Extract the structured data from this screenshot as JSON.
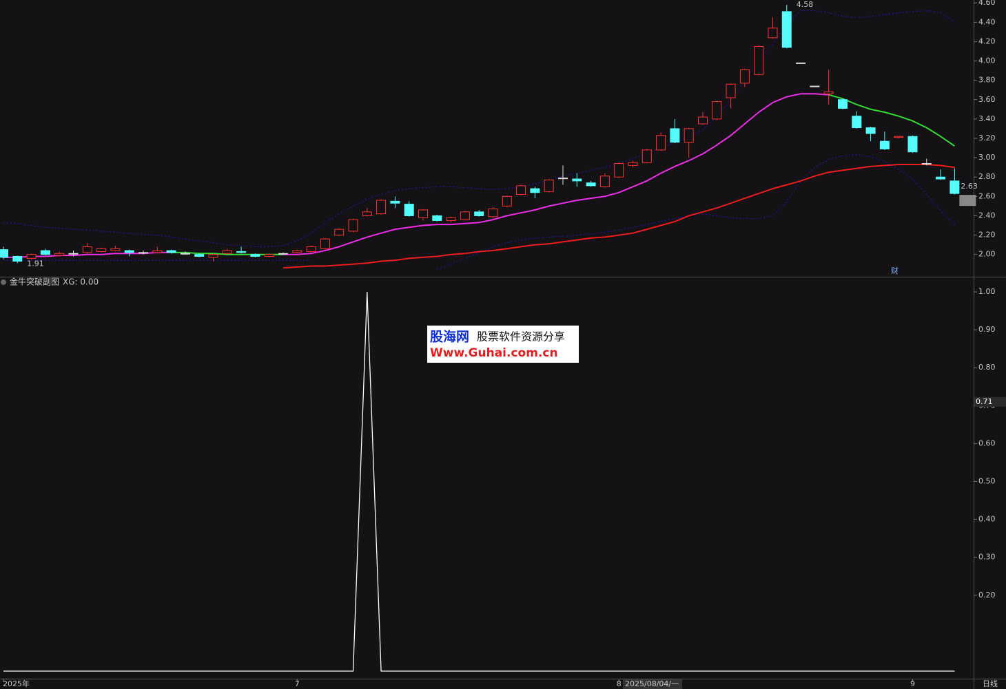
{
  "chart_data": [
    {
      "type": "candlestick",
      "categories": [
        "2025年",
        null,
        null,
        null,
        null,
        null,
        null,
        null,
        null,
        null,
        null,
        null,
        null,
        null,
        null,
        null,
        null,
        null,
        null,
        null,
        null,
        "7",
        null,
        null,
        null,
        null,
        null,
        null,
        null,
        null,
        null,
        null,
        null,
        null,
        null,
        null,
        null,
        null,
        null,
        null,
        null,
        null,
        null,
        null,
        "8",
        null,
        null,
        null,
        null,
        null,
        null,
        null,
        null,
        null,
        null,
        null,
        null,
        null,
        null,
        null,
        null,
        null,
        null,
        null,
        null,
        "9",
        null,
        null,
        null
      ],
      "open": [
        2.05,
        1.98,
        1.96,
        2.04,
        1.99,
        2.01,
        2.02,
        2.03,
        2.04,
        2.04,
        2.02,
        2.02,
        2.04,
        2.01,
        2.0,
        1.97,
        2.01,
        2.03,
        2.0,
        1.98,
        2.01,
        2.02,
        2.03,
        2.06,
        2.2,
        2.24,
        2.4,
        2.42,
        2.55,
        2.52,
        2.38,
        2.4,
        2.35,
        2.36,
        2.44,
        2.39,
        2.5,
        2.62,
        2.68,
        2.65,
        2.79,
        2.78,
        2.74,
        2.7,
        2.8,
        2.92,
        2.95,
        3.08,
        3.3,
        3.16,
        3.35,
        3.4,
        3.62,
        3.77,
        3.86,
        4.24,
        4.51,
        3.98,
        3.74,
        3.66,
        3.6,
        3.43,
        3.31,
        3.17,
        3.21,
        3.22,
        2.94,
        2.8,
        2.76
      ],
      "high": [
        2.08,
        1.99,
        2.01,
        2.06,
        2.03,
        2.04,
        2.12,
        2.07,
        2.09,
        2.05,
        2.04,
        2.08,
        2.05,
        2.03,
        2.01,
        2.01,
        2.06,
        2.08,
        2.01,
        2.01,
        2.02,
        2.05,
        2.09,
        2.17,
        2.27,
        2.37,
        2.48,
        2.57,
        2.6,
        2.55,
        2.47,
        2.41,
        2.39,
        2.45,
        2.46,
        2.49,
        2.61,
        2.72,
        2.7,
        2.78,
        2.92,
        2.84,
        2.76,
        2.84,
        2.95,
        2.97,
        3.09,
        3.26,
        3.4,
        3.31,
        3.47,
        3.59,
        3.77,
        3.92,
        4.16,
        4.45,
        4.58,
        3.98,
        3.74,
        3.91,
        3.61,
        3.48,
        3.32,
        3.27,
        3.22,
        3.23,
        2.99,
        2.88,
        2.89
      ],
      "low": [
        1.95,
        1.91,
        1.95,
        1.99,
        1.98,
        1.98,
        2.01,
        2.02,
        2.03,
        1.98,
        2.0,
        2.01,
        2.01,
        2.0,
        1.97,
        1.93,
        2.0,
        2.01,
        1.97,
        1.97,
        2.0,
        2.01,
        2.02,
        2.05,
        2.19,
        2.23,
        2.39,
        2.41,
        2.48,
        2.39,
        2.35,
        2.34,
        2.33,
        2.35,
        2.39,
        2.38,
        2.49,
        2.61,
        2.58,
        2.64,
        2.72,
        2.7,
        2.7,
        2.69,
        2.79,
        2.9,
        2.94,
        3.07,
        3.15,
        3.0,
        3.34,
        3.39,
        3.51,
        3.73,
        3.85,
        4.23,
        4.13,
        3.98,
        3.74,
        3.55,
        3.5,
        3.3,
        3.17,
        3.08,
        3.2,
        3.05,
        2.92,
        2.77,
        2.62
      ],
      "close": [
        1.97,
        1.93,
        2.0,
        2.0,
        2.01,
        2.01,
        2.08,
        2.06,
        2.06,
        2.02,
        2.02,
        2.04,
        2.02,
        2.01,
        1.98,
        2.0,
        2.04,
        2.02,
        1.98,
        2.0,
        2.01,
        2.04,
        2.08,
        2.16,
        2.26,
        2.36,
        2.44,
        2.56,
        2.53,
        2.4,
        2.46,
        2.35,
        2.38,
        2.44,
        2.4,
        2.47,
        2.6,
        2.71,
        2.64,
        2.77,
        2.79,
        2.76,
        2.71,
        2.81,
        2.94,
        2.95,
        3.08,
        3.23,
        3.16,
        3.3,
        3.42,
        3.58,
        3.76,
        3.91,
        4.15,
        4.34,
        4.14,
        3.98,
        3.74,
        3.68,
        3.51,
        3.31,
        3.25,
        3.09,
        3.22,
        3.06,
        2.94,
        2.78,
        2.63
      ],
      "up_color": "#ff3232",
      "down_color": "#54fcfc",
      "flat_color": "#e0e0e0",
      "overlays": [
        {
          "color": "#1a1aa8",
          "style": "dotted",
          "values": [
            2.33,
            2.32,
            2.3,
            2.28,
            2.27,
            2.26,
            2.25,
            2.24,
            2.23,
            2.22,
            2.21,
            2.2,
            2.18,
            2.16,
            2.14,
            2.12,
            2.1,
            2.09,
            2.08,
            2.08,
            2.09,
            2.14,
            2.22,
            2.32,
            2.42,
            2.5,
            2.57,
            2.62,
            2.66,
            2.68,
            2.69,
            2.7,
            2.7,
            2.69,
            2.68,
            2.67,
            2.68,
            2.7,
            2.73,
            2.77,
            2.81,
            2.84,
            2.87,
            2.9,
            2.94,
            2.99,
            3.05,
            3.1,
            3.15,
            3.22,
            3.29,
            3.42,
            3.6,
            3.8,
            4.0,
            4.18,
            4.38,
            4.52,
            4.52,
            4.5,
            4.46,
            4.45,
            4.46,
            4.48,
            4.5,
            4.51,
            4.52,
            4.5,
            4.4
          ]
        },
        {
          "color": "#1a1aa8",
          "style": "dotted",
          "values": [
            1.94,
            1.94,
            1.94,
            1.94,
            1.94,
            1.94,
            1.94,
            1.94,
            1.94,
            1.94,
            1.94,
            1.94,
            1.94,
            1.94,
            1.94,
            1.94,
            1.94,
            1.94,
            1.94,
            1.94,
            1.94,
            1.94,
            1.94,
            null,
            null,
            null,
            null,
            null,
            null,
            null,
            null,
            1.85,
            1.9,
            1.96,
            2.02,
            2.08,
            2.12,
            2.15,
            2.17,
            2.18,
            2.19,
            2.2,
            2.21,
            2.23,
            2.25,
            2.28,
            2.31,
            2.34,
            2.37,
            2.4,
            2.42,
            2.4,
            2.38,
            2.37,
            2.37,
            2.4,
            2.55,
            2.76,
            2.9,
            2.98,
            3.02,
            3.03,
            3.01,
            2.96,
            2.88,
            2.78,
            2.62,
            2.45,
            2.3
          ]
        },
        {
          "color": "#ee1c1c",
          "style": "solid",
          "values": [
            null,
            null,
            null,
            null,
            null,
            null,
            null,
            null,
            null,
            null,
            null,
            null,
            null,
            null,
            null,
            null,
            null,
            null,
            null,
            null,
            1.86,
            1.87,
            1.88,
            1.88,
            1.89,
            1.9,
            1.91,
            1.93,
            1.94,
            1.96,
            1.97,
            1.98,
            2.0,
            2.01,
            2.03,
            2.04,
            2.06,
            2.08,
            2.1,
            2.11,
            2.13,
            2.15,
            2.17,
            2.18,
            2.2,
            2.22,
            2.26,
            2.3,
            2.34,
            2.4,
            2.44,
            2.48,
            2.53,
            2.58,
            2.63,
            2.68,
            2.72,
            2.76,
            2.81,
            2.85,
            2.87,
            2.89,
            2.91,
            2.92,
            2.93,
            2.93,
            2.93,
            2.92,
            2.9
          ]
        },
        {
          "color": "#ee2ee8",
          "style": "solid",
          "values": [
            1.97,
            1.97,
            1.98,
            1.98,
            1.99,
            1.99,
            2.0,
            2.0,
            2.01,
            2.01,
            2.01,
            2.02,
            2.02,
            null,
            null,
            null,
            null,
            null,
            null,
            null,
            2.0,
            2.0,
            2.01,
            2.04,
            2.08,
            2.13,
            2.18,
            2.22,
            2.26,
            2.28,
            2.3,
            2.31,
            2.31,
            2.32,
            2.33,
            2.36,
            2.4,
            2.43,
            2.46,
            2.5,
            2.53,
            2.56,
            2.58,
            2.6,
            2.64,
            2.7,
            2.76,
            2.84,
            2.91,
            2.97,
            3.04,
            3.13,
            3.23,
            3.35,
            3.47,
            3.57,
            3.63,
            3.66,
            3.66,
            3.65,
            null,
            null,
            null,
            null,
            null,
            null,
            null,
            null,
            null
          ]
        },
        {
          "color": "#33dd33",
          "style": "solid",
          "values": [
            null,
            null,
            null,
            null,
            null,
            null,
            null,
            null,
            null,
            null,
            null,
            null,
            2.02,
            2.02,
            2.01,
            2.01,
            2.0,
            2.0,
            2.0,
            2.0,
            2.0,
            null,
            null,
            null,
            null,
            null,
            null,
            null,
            null,
            null,
            null,
            null,
            null,
            null,
            null,
            null,
            null,
            null,
            null,
            null,
            null,
            null,
            null,
            null,
            null,
            null,
            null,
            null,
            null,
            null,
            null,
            null,
            null,
            null,
            null,
            null,
            null,
            null,
            null,
            3.65,
            3.61,
            3.55,
            3.5,
            3.47,
            3.43,
            3.38,
            3.31,
            3.22,
            3.12
          ]
        }
      ],
      "ylim": [
        1.77,
        4.63
      ],
      "yticks": [
        {
          "value": 2.0,
          "label": "2.00"
        },
        {
          "value": 2.2,
          "label": "2.20"
        },
        {
          "value": 2.4,
          "label": "2.40"
        },
        {
          "value": 2.6,
          "label": "2.60"
        },
        {
          "value": 2.8,
          "label": "2.80"
        },
        {
          "value": 3.0,
          "label": "3.00"
        },
        {
          "value": 3.2,
          "label": "3.20"
        },
        {
          "value": 3.4,
          "label": "3.40"
        },
        {
          "value": 3.6,
          "label": "3.60"
        },
        {
          "value": 3.8,
          "label": "3.80"
        },
        {
          "value": 4.0,
          "label": "4.00"
        },
        {
          "value": 4.2,
          "label": "4.20"
        },
        {
          "value": 4.4,
          "label": "4.40"
        },
        {
          "value": 4.6,
          "label": "4.60"
        }
      ],
      "high_label": "4.58",
      "low_label": "1.91",
      "last_label": "2.63",
      "marker_text": "财",
      "cursor_date": "2025/08/04/一",
      "period": "日线"
    },
    {
      "type": "line",
      "title": "金牛突破副图",
      "value_text": "XG: 0.00",
      "color": "#ffffff",
      "values": [
        0,
        0,
        0,
        0,
        0,
        0,
        0,
        0,
        0,
        0,
        0,
        0,
        0,
        0,
        0,
        0,
        0,
        0,
        0,
        0,
        0,
        0,
        0,
        0,
        0,
        0,
        1,
        0,
        0,
        0,
        0,
        0,
        0,
        0,
        0,
        0,
        0,
        0,
        0,
        0,
        0,
        0,
        0,
        0,
        0,
        0,
        0,
        0,
        0,
        0,
        0,
        0,
        0,
        0,
        0,
        0,
        0,
        0,
        0,
        0,
        0,
        0,
        0,
        0,
        0,
        0,
        0,
        0,
        0
      ],
      "ylim": [
        -0.02,
        1.04
      ],
      "yticks": [
        {
          "value": 0.2,
          "label": "0.20"
        },
        {
          "value": 0.3,
          "label": "0.30"
        },
        {
          "value": 0.4,
          "label": "0.40"
        },
        {
          "value": 0.5,
          "label": "0.50"
        },
        {
          "value": 0.6,
          "label": "0.60"
        },
        {
          "value": 0.7,
          "label": "0.70"
        },
        {
          "value": 0.8,
          "label": "0.80"
        },
        {
          "value": 0.9,
          "label": "0.90"
        },
        {
          "value": 1.0,
          "label": "1.00"
        }
      ],
      "cursor": {
        "value": 0.71,
        "label": "0.71"
      }
    }
  ],
  "watermark": {
    "title": "股海网",
    "subtitle": "股票软件资源分享",
    "url": "Www.Guhai.com.cn"
  }
}
